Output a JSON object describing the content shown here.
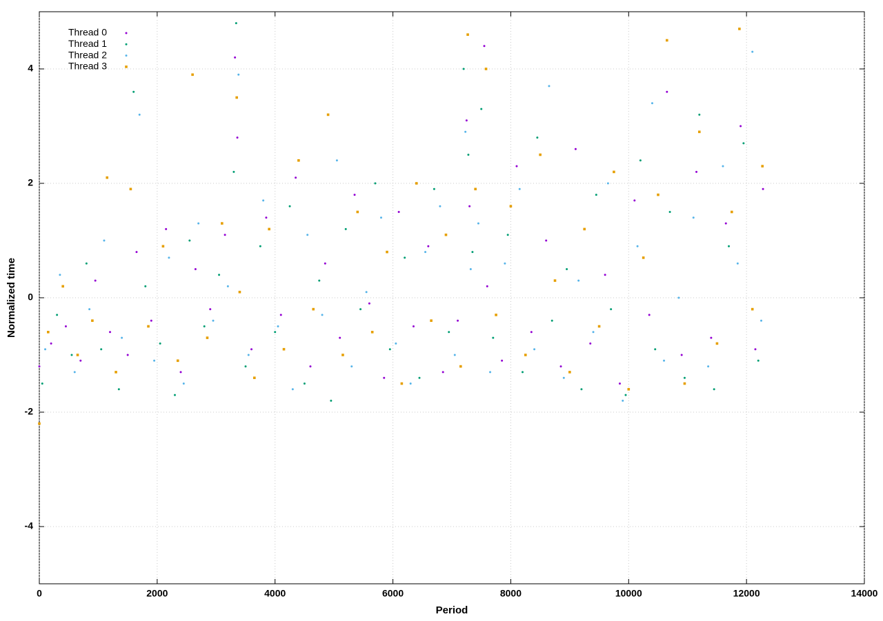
{
  "chart_data": {
    "type": "scatter",
    "xlabel": "Period",
    "ylabel": "Normalized time",
    "xlim": [
      0,
      14000
    ],
    "ylim": [
      -5,
      5
    ],
    "xticks": [
      0,
      2000,
      4000,
      6000,
      8000,
      10000,
      12000,
      14000
    ],
    "yticks": [
      -4,
      -2,
      0,
      2,
      4
    ],
    "grid": true,
    "legend": "upper left",
    "series": [
      {
        "name": "Thread 0",
        "color": "#9400d3",
        "marker": "dot",
        "x": [
          0,
          200,
          450,
          700,
          950,
          1200,
          1500,
          1650,
          1900,
          2150,
          2400,
          2650,
          2900,
          3150,
          3320,
          3360,
          3600,
          3850,
          4100,
          4350,
          4600,
          4850,
          5100,
          5350,
          5600,
          5850,
          6100,
          6350,
          6600,
          6850,
          7100,
          7250,
          7300,
          7550,
          7600,
          7850,
          8100,
          8350,
          8600,
          8850,
          9100,
          9350,
          9600,
          9850,
          10100,
          10350,
          10650,
          10900,
          11150,
          11400,
          11650,
          11900,
          12150,
          12280
        ],
        "values": [
          -1.2,
          -0.8,
          -0.5,
          -1.1,
          0.3,
          -0.6,
          -1.0,
          0.8,
          -0.4,
          1.2,
          -1.3,
          0.5,
          -0.2,
          1.1,
          4.2,
          2.8,
          -0.9,
          1.4,
          -0.3,
          2.1,
          -1.2,
          0.6,
          -0.7,
          1.8,
          -0.1,
          -1.4,
          1.5,
          -0.5,
          0.9,
          -1.3,
          -0.4,
          3.1,
          1.6,
          4.4,
          0.2,
          -1.1,
          2.3,
          -0.6,
          1.0,
          -1.2,
          2.6,
          -0.8,
          0.4,
          -1.5,
          1.7,
          -0.3,
          3.6,
          -1.0,
          2.2,
          -0.7,
          1.3,
          3.0,
          -0.9,
          1.9
        ]
      },
      {
        "name": "Thread 1",
        "color": "#009e73",
        "marker": "dot",
        "x": [
          50,
          300,
          550,
          800,
          1050,
          1350,
          1600,
          1800,
          2050,
          2300,
          2550,
          2800,
          3050,
          3300,
          3340,
          3500,
          3750,
          4000,
          4250,
          4500,
          4750,
          4950,
          5200,
          5450,
          5700,
          5950,
          6200,
          6450,
          6700,
          6950,
          7200,
          7280,
          7350,
          7500,
          7700,
          7950,
          8200,
          8450,
          8700,
          8950,
          9200,
          9450,
          9700,
          9950,
          10200,
          10450,
          10700,
          10950,
          11200,
          11450,
          11700,
          11950,
          12200
        ],
        "values": [
          -1.5,
          -0.3,
          -1.0,
          0.6,
          -0.9,
          -1.6,
          3.6,
          0.2,
          -0.8,
          -1.7,
          1.0,
          -0.5,
          0.4,
          2.2,
          4.8,
          -1.2,
          0.9,
          -0.6,
          1.6,
          -1.5,
          0.3,
          -1.8,
          1.2,
          -0.2,
          2.0,
          -0.9,
          0.7,
          -1.4,
          1.9,
          -0.6,
          4.0,
          2.5,
          0.8,
          3.3,
          -0.7,
          1.1,
          -1.3,
          2.8,
          -0.4,
          0.5,
          -1.6,
          1.8,
          -0.2,
          -1.7,
          2.4,
          -0.9,
          1.5,
          -1.4,
          3.2,
          -1.6,
          0.9,
          2.7,
          -1.1
        ]
      },
      {
        "name": "Thread 2",
        "color": "#56b4e9",
        "marker": "dot",
        "x": [
          100,
          350,
          600,
          850,
          1100,
          1400,
          1700,
          1950,
          2200,
          2450,
          2700,
          2950,
          3200,
          3380,
          3550,
          3800,
          4050,
          4300,
          4550,
          4800,
          5050,
          5300,
          5550,
          5800,
          6050,
          6300,
          6550,
          6800,
          7050,
          7230,
          7320,
          7450,
          7650,
          7900,
          8150,
          8400,
          8650,
          8900,
          9150,
          9400,
          9650,
          9900,
          10150,
          10400,
          10600,
          10850,
          11100,
          11350,
          11600,
          11850,
          12100,
          12250
        ],
        "values": [
          -0.9,
          0.4,
          -1.3,
          -0.2,
          1.0,
          -0.7,
          3.2,
          -1.1,
          0.7,
          -1.5,
          1.3,
          -0.4,
          0.2,
          3.9,
          -1.0,
          1.7,
          -0.5,
          -1.6,
          1.1,
          -0.3,
          2.4,
          -1.2,
          0.1,
          1.4,
          -0.8,
          -1.5,
          0.8,
          1.6,
          -1.0,
          2.9,
          0.5,
          1.3,
          -1.3,
          0.6,
          1.9,
          -0.9,
          3.7,
          -1.4,
          0.3,
          -0.6,
          2.0,
          -1.8,
          0.9,
          3.4,
          -1.1,
          0.0,
          1.4,
          -1.2,
          2.3,
          0.6,
          4.3,
          -0.4
        ]
      },
      {
        "name": "Thread 3",
        "color": "#e69f00",
        "marker": "square",
        "x": [
          0,
          150,
          400,
          650,
          900,
          1150,
          1300,
          1550,
          1850,
          2100,
          2350,
          2600,
          2850,
          3100,
          3350,
          3400,
          3650,
          3900,
          4150,
          4400,
          4650,
          4900,
          5150,
          5400,
          5650,
          5900,
          6150,
          6400,
          6650,
          6900,
          7150,
          7270,
          7400,
          7580,
          7750,
          8000,
          8250,
          8500,
          8750,
          9000,
          9250,
          9500,
          9750,
          10000,
          10250,
          10500,
          10650,
          10950,
          11200,
          11500,
          11750,
          11880,
          12100,
          12270
        ],
        "values": [
          -2.2,
          -0.6,
          0.2,
          -1.0,
          -0.4,
          2.1,
          -1.3,
          1.9,
          -0.5,
          0.9,
          -1.1,
          3.9,
          -0.7,
          1.3,
          3.5,
          0.1,
          -1.4,
          1.2,
          -0.9,
          2.4,
          -0.2,
          3.2,
          -1.0,
          1.5,
          -0.6,
          0.8,
          -1.5,
          2.0,
          -0.4,
          1.1,
          -1.2,
          4.6,
          1.9,
          4.0,
          -0.3,
          1.6,
          -1.0,
          2.5,
          0.3,
          -1.3,
          1.2,
          -0.5,
          2.2,
          -1.6,
          0.7,
          1.8,
          4.5,
          -1.5,
          2.9,
          -0.8,
          1.5,
          4.7,
          -0.2,
          2.3
        ]
      }
    ]
  }
}
